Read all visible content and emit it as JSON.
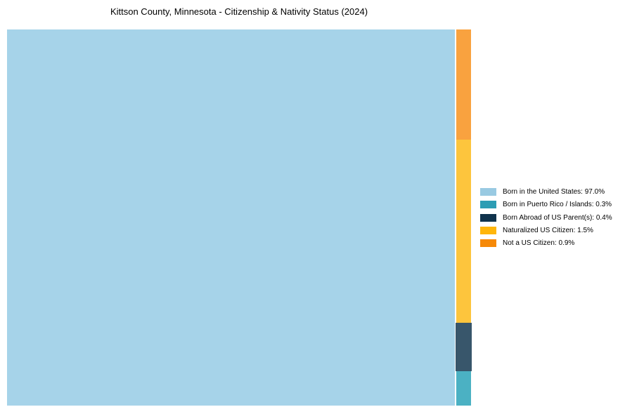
{
  "title": "Kittson County, Minnesota - Citizenship & Nativity Status (2024)",
  "chart_data": {
    "type": "treemap",
    "title": "Kittson County, Minnesota - Citizenship & Nativity Status (2024)",
    "categories": [
      "Born in the United States",
      "Born in Puerto Rico / Islands",
      "Born Abroad of US Parent(s)",
      "Naturalized US Citizen",
      "Not a US Citizen"
    ],
    "values": [
      97.0,
      0.3,
      0.4,
      1.5,
      0.9
    ],
    "unit": "%",
    "legend_position": "right",
    "layout": "large cell left for majority value; remaining values stacked in narrow right column ordered top-to-bottom: Not a US Citizen, Naturalized US Citizen, Born Abroad of US Parent(s), Born in Puerto Rico / Islands",
    "colors": {
      "born_in_us": "#A6D3E9",
      "puerto_rico": "#4BB1C3",
      "born_abroad": "#38566B",
      "naturalized": "#FDC53D",
      "not_citizen": "#F9A23F"
    }
  },
  "legend": {
    "items": [
      {
        "label": "Born in the United States: 97.0%",
        "color": "#99CAE2"
      },
      {
        "label": "Born in Puerto Rico / Islands: 0.3%",
        "color": "#2C9DB4"
      },
      {
        "label": "Born Abroad of US Parent(s): 0.4%",
        "color": "#10334C"
      },
      {
        "label": "Naturalized US Citizen: 1.5%",
        "color": "#FFB60A"
      },
      {
        "label": "Not a US Citizen: 0.9%",
        "color": "#F68908"
      }
    ]
  }
}
